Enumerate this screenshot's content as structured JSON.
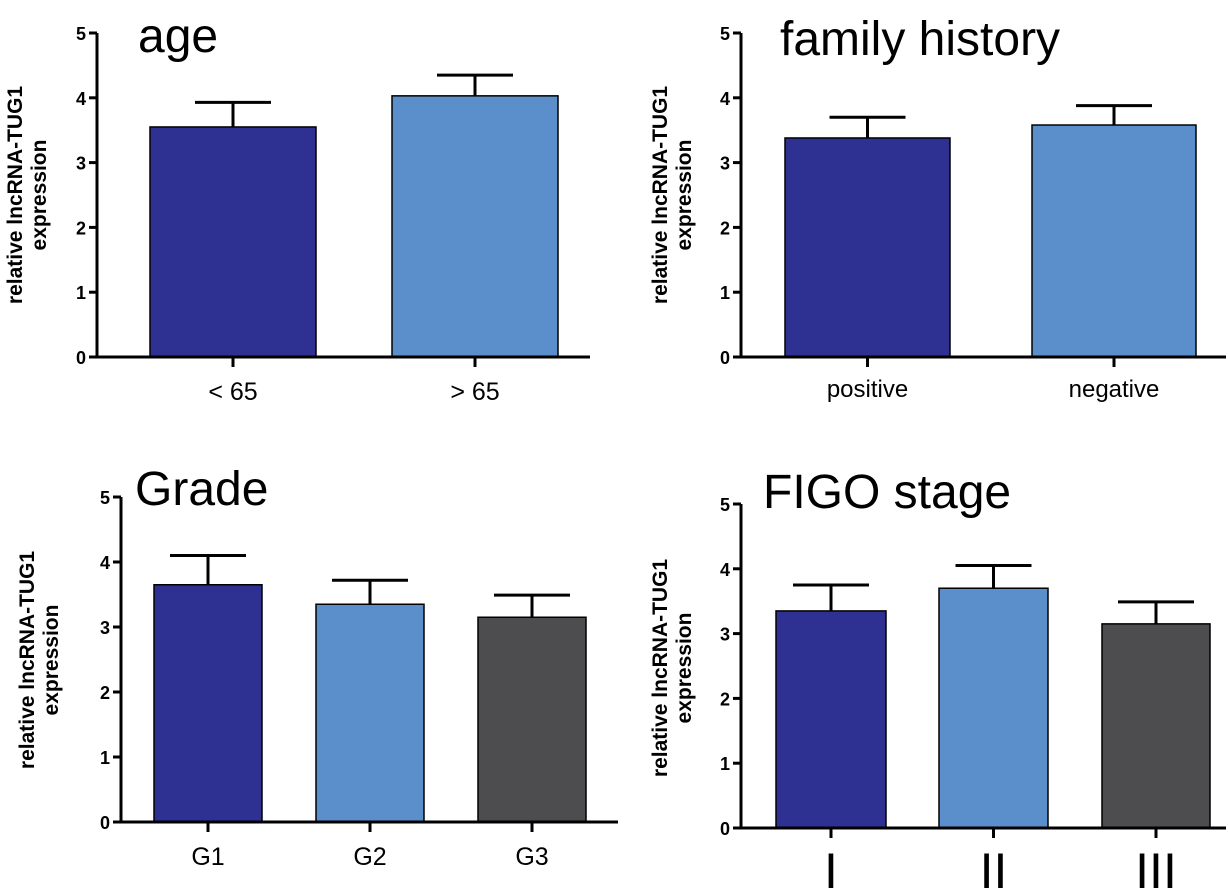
{
  "colors": {
    "dark_blue": "#2e3192",
    "light_blue": "#5a8fcb",
    "dark_gray": "#4d4d4f",
    "axis": "#000000"
  },
  "chart_data": [
    {
      "type": "bar",
      "title": "age",
      "ylabel": [
        "relative lncRNA-TUG1",
        "expression"
      ],
      "ylim": [
        0,
        5
      ],
      "yticks": [
        "0",
        "1",
        "2",
        "3",
        "4",
        "5"
      ],
      "categories": [
        "< 65",
        "> 65"
      ],
      "values": [
        3.55,
        4.03
      ],
      "errors": [
        0.38,
        0.32
      ],
      "bar_colors": [
        "dark_blue",
        "light_blue"
      ]
    },
    {
      "type": "bar",
      "title": "family history",
      "ylabel": [
        "relative lncRNA-TUG1",
        "expression"
      ],
      "ylim": [
        0,
        5
      ],
      "yticks": [
        "0",
        "1",
        "2",
        "3",
        "4",
        "5"
      ],
      "categories": [
        "positive",
        "negative"
      ],
      "values": [
        3.38,
        3.58
      ],
      "errors": [
        0.32,
        0.3
      ],
      "bar_colors": [
        "dark_blue",
        "light_blue"
      ]
    },
    {
      "type": "bar",
      "title": "Grade",
      "ylabel": [
        "relative lncRNA-TUG1",
        "expression"
      ],
      "ylim": [
        0,
        5
      ],
      "yticks": [
        "0",
        "1",
        "2",
        "3",
        "4",
        "5"
      ],
      "categories": [
        "G1",
        "G2",
        "G3"
      ],
      "values": [
        3.65,
        3.35,
        3.15
      ],
      "errors": [
        0.45,
        0.37,
        0.34
      ],
      "bar_colors": [
        "dark_blue",
        "light_blue",
        "dark_gray"
      ]
    },
    {
      "type": "bar",
      "title": "FIGO stage",
      "ylabel": [
        "relative lncRNA-TUG1",
        "expression"
      ],
      "ylim": [
        0,
        5
      ],
      "yticks": [
        "0",
        "1",
        "2",
        "3",
        "4",
        "5"
      ],
      "categories": [
        "I",
        "II",
        "III"
      ],
      "values": [
        3.35,
        3.7,
        3.15
      ],
      "errors": [
        0.4,
        0.35,
        0.34
      ],
      "bar_colors": [
        "dark_blue",
        "light_blue",
        "dark_gray"
      ]
    }
  ]
}
